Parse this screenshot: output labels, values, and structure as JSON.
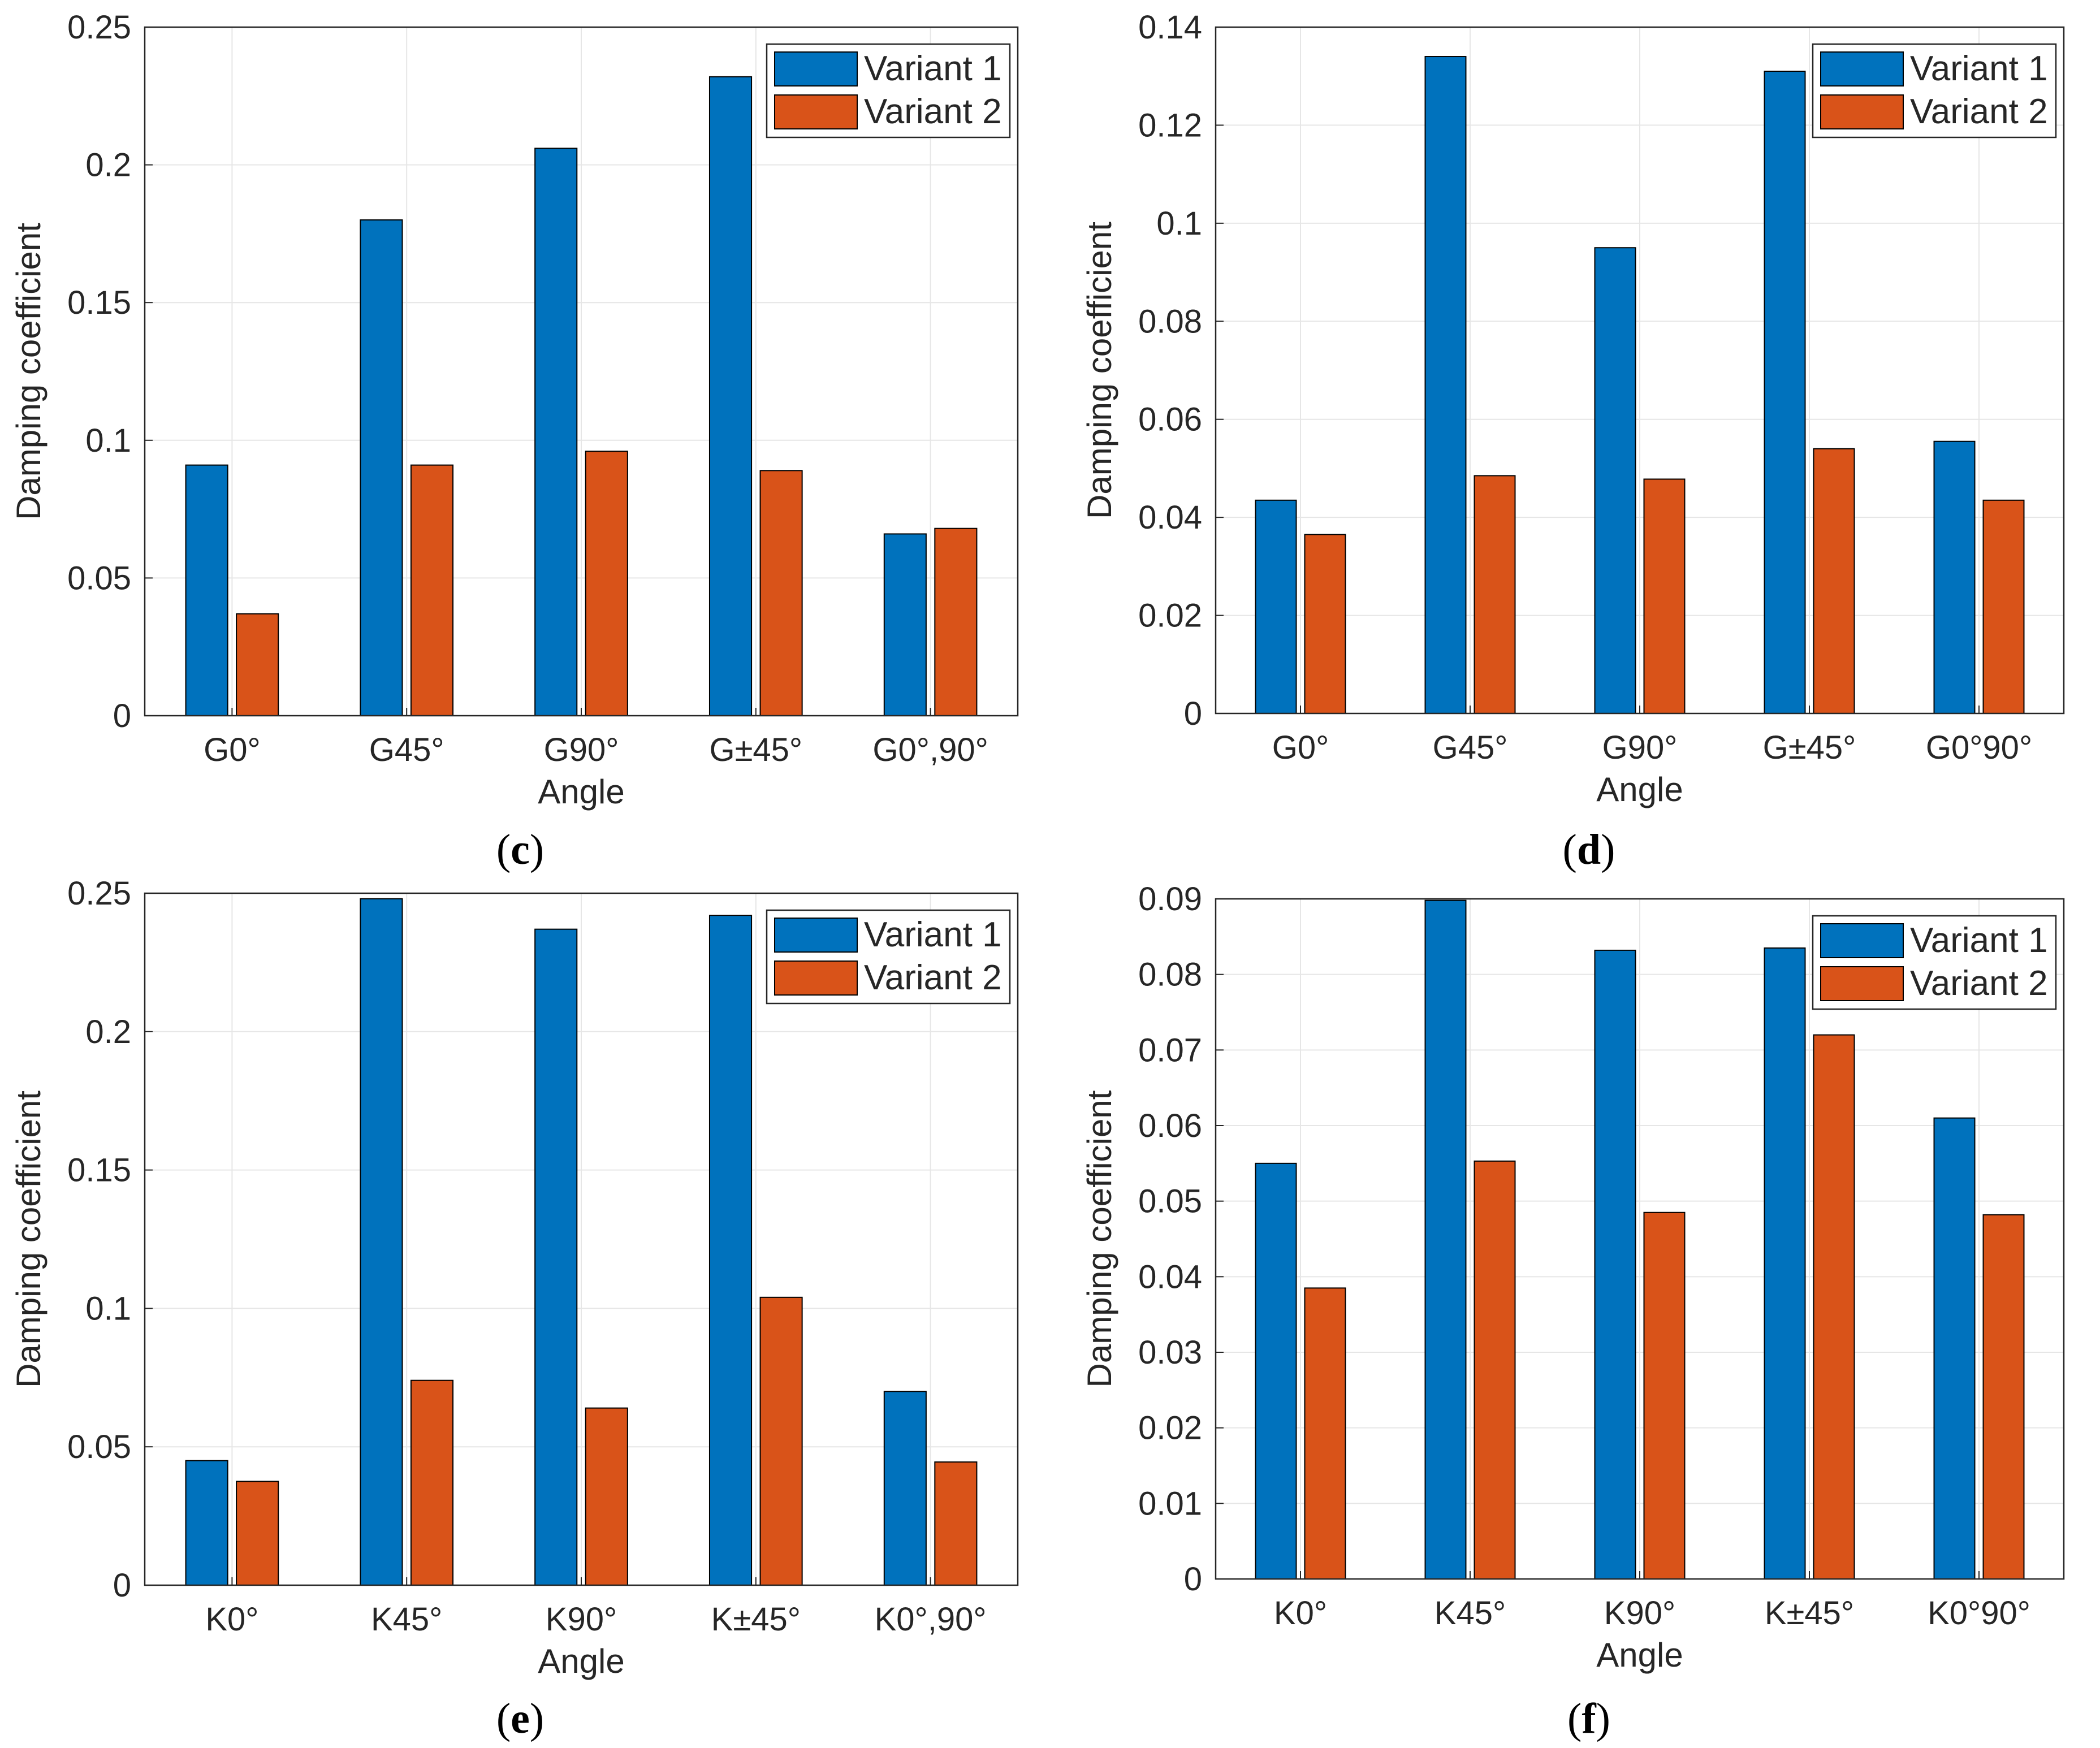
{
  "chart_data": [
    {
      "panel_label": "(c)",
      "type": "bar",
      "xlabel": "Angle",
      "ylabel": "Damping coefficient",
      "ylim": [
        0,
        0.25
      ],
      "yticks": [
        "0",
        "0.05",
        "0.1",
        "0.15",
        "0.2",
        "0.25"
      ],
      "ytick_values": [
        0,
        0.05,
        0.1,
        0.15,
        0.2,
        0.25
      ],
      "categories": [
        "G0°",
        "G45°",
        "G90°",
        "G±45°",
        "G0°,90°"
      ],
      "series": [
        {
          "name": "Variant 1",
          "values": [
            0.091,
            0.18,
            0.206,
            0.232,
            0.066
          ]
        },
        {
          "name": "Variant 2",
          "values": [
            0.037,
            0.091,
            0.096,
            0.089,
            0.068
          ]
        }
      ],
      "grid": true,
      "legend_position": "top-right"
    },
    {
      "panel_label": "(d)",
      "type": "bar",
      "xlabel": "Angle",
      "ylabel": "Damping coefficient",
      "ylim": [
        0,
        0.14
      ],
      "yticks": [
        "0",
        "0.02",
        "0.04",
        "0.06",
        "0.08",
        "0.1",
        "0.12",
        "0.14"
      ],
      "ytick_values": [
        0,
        0.02,
        0.04,
        0.06,
        0.08,
        0.1,
        0.12,
        0.14
      ],
      "categories": [
        "G0°",
        "G45°",
        "G90°",
        "G±45°",
        "G0°90°"
      ],
      "series": [
        {
          "name": "Variant 1",
          "values": [
            0.0435,
            0.134,
            0.095,
            0.131,
            0.0555
          ]
        },
        {
          "name": "Variant 2",
          "values": [
            0.0365,
            0.0485,
            0.0478,
            0.054,
            0.0435
          ]
        }
      ],
      "grid": true,
      "legend_position": "top-right"
    },
    {
      "panel_label": "(e)",
      "type": "bar",
      "xlabel": "Angle",
      "ylabel": "Damping coefficient",
      "ylim": [
        0,
        0.25
      ],
      "yticks": [
        "0",
        "0.05",
        "0.1",
        "0.15",
        "0.2",
        "0.25"
      ],
      "ytick_values": [
        0,
        0.05,
        0.1,
        0.15,
        0.2,
        0.25
      ],
      "categories": [
        "K0°",
        "K45°",
        "K90°",
        "K±45°",
        "K0°,90°"
      ],
      "series": [
        {
          "name": "Variant 1",
          "values": [
            0.045,
            0.248,
            0.237,
            0.242,
            0.07
          ]
        },
        {
          "name": "Variant 2",
          "values": [
            0.0375,
            0.074,
            0.064,
            0.104,
            0.0445
          ]
        }
      ],
      "grid": true,
      "legend_position": "top-right"
    },
    {
      "panel_label": "(f)",
      "type": "bar",
      "xlabel": "Angle",
      "ylabel": "Damping coefficient",
      "ylim": [
        0,
        0.09
      ],
      "yticks": [
        "0",
        "0.01",
        "0.02",
        "0.03",
        "0.04",
        "0.05",
        "0.06",
        "0.07",
        "0.08",
        "0.09"
      ],
      "ytick_values": [
        0,
        0.01,
        0.02,
        0.03,
        0.04,
        0.05,
        0.06,
        0.07,
        0.08,
        0.09
      ],
      "categories": [
        "K0°",
        "K45°",
        "K90°",
        "K±45°",
        "K0°90°"
      ],
      "series": [
        {
          "name": "Variant 1",
          "values": [
            0.055,
            0.0898,
            0.0832,
            0.0835,
            0.061
          ]
        },
        {
          "name": "Variant 2",
          "values": [
            0.0385,
            0.0553,
            0.0485,
            0.072,
            0.0482
          ]
        }
      ],
      "grid": true,
      "legend_position": "top-right"
    }
  ],
  "colors": {
    "variant_1": "#0072BD",
    "variant_2": "#D95319",
    "grid": "#e6e6e6",
    "axis": "#262626"
  }
}
